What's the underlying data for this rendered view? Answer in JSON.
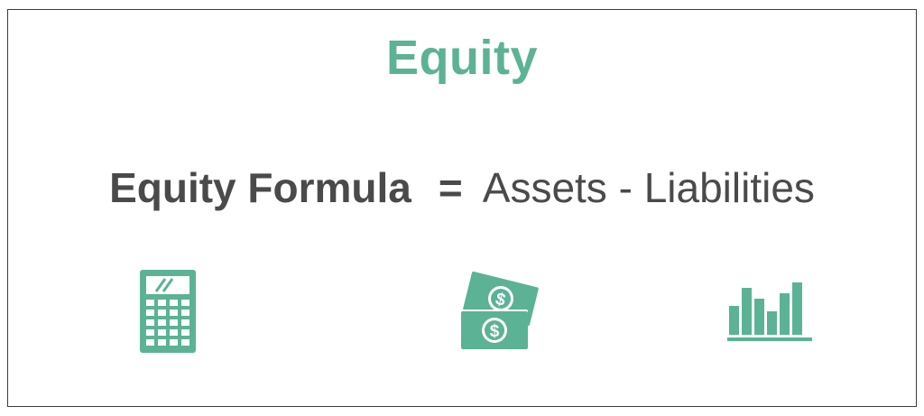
{
  "title": "Equity",
  "formula": {
    "lhs": "Equity Formula",
    "operator": "=",
    "rhs": "Assets - Liabilities"
  },
  "icons": [
    "calculator-icon",
    "money-bills-icon",
    "bar-chart-icon"
  ],
  "colors": {
    "accent": "#5cb295",
    "text": "#4a4a4a",
    "border": "#3a3a3a"
  }
}
